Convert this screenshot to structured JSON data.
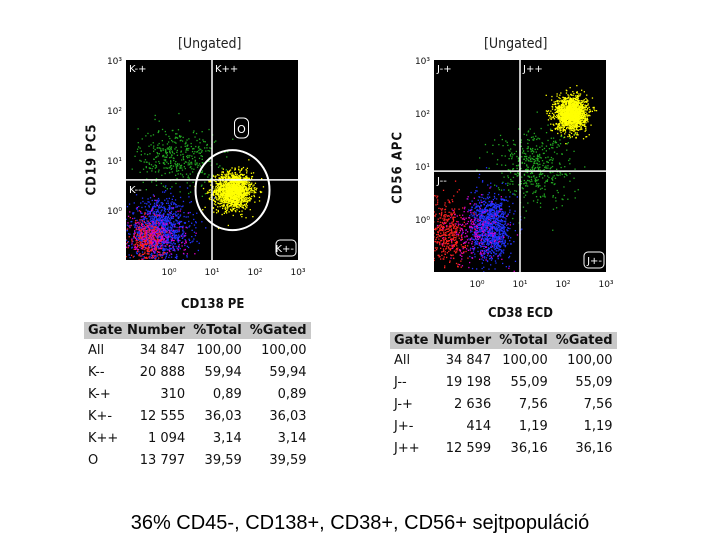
{
  "chart_data": [
    {
      "type": "scatter",
      "title": "[Ungated]",
      "xlabel": "CD138 PE",
      "ylabel": "CD19 PC5",
      "scale": "log",
      "xlim": [
        0.1,
        1000
      ],
      "ylim": [
        0.1,
        1000
      ],
      "x_ticks": [
        "10⁰",
        "10¹",
        "10²",
        "10³"
      ],
      "y_ticks": [
        "10⁰",
        "10¹",
        "10²",
        "10³"
      ],
      "quadrant_cross": {
        "x": 10,
        "y": 4
      },
      "quadrant_labels": [
        "K-+",
        "K++",
        "K--",
        "K+-"
      ],
      "region_label": "O",
      "region": {
        "center_x": 30,
        "center_y": 2.5
      },
      "populations": [
        {
          "name": "plasma cells",
          "color": "#ffff00",
          "center": [
            30,
            2.5
          ],
          "spread_decades": [
            0.22,
            0.18
          ],
          "count": 1600
        },
        {
          "name": "green population",
          "color": "#22aa22",
          "center": [
            1.5,
            12
          ],
          "spread_decades": [
            0.45,
            0.3
          ],
          "count": 380
        },
        {
          "name": "blue population",
          "color": "#2233ff",
          "center": [
            0.6,
            0.4
          ],
          "spread_decades": [
            0.35,
            0.3
          ],
          "count": 1100
        },
        {
          "name": "red population",
          "color": "#ff2222",
          "center": [
            0.3,
            0.25
          ],
          "spread_decades": [
            0.2,
            0.2
          ],
          "count": 350
        },
        {
          "name": "magenta population",
          "color": "#dd00cc",
          "center": [
            0.5,
            0.3
          ],
          "spread_decades": [
            0.35,
            0.3
          ],
          "count": 250
        }
      ]
    },
    {
      "type": "scatter",
      "title": "[Ungated]",
      "xlabel": "CD38 ECD",
      "ylabel": "CD56 APC",
      "scale": "log",
      "xlim": [
        0.1,
        1000
      ],
      "ylim": [
        0.1,
        1000
      ],
      "x_ticks": [
        "10⁰",
        "10¹",
        "10²",
        "10³"
      ],
      "y_ticks": [
        "10⁰",
        "10¹",
        "10²",
        "10³"
      ],
      "quadrant_cross": {
        "x": 10,
        "y": 8
      },
      "quadrant_labels": [
        "J-+",
        "J++",
        "J--",
        "J+-"
      ],
      "populations": [
        {
          "name": "plasma cells",
          "color": "#ffff00",
          "center": [
            150,
            100
          ],
          "spread_decades": [
            0.18,
            0.16
          ],
          "count": 1600
        },
        {
          "name": "green population",
          "color": "#22aa22",
          "center": [
            20,
            10
          ],
          "spread_decades": [
            0.45,
            0.35
          ],
          "count": 450
        },
        {
          "name": "blue population",
          "color": "#2233ff",
          "center": [
            2,
            0.7
          ],
          "spread_decades": [
            0.22,
            0.3
          ],
          "count": 1100
        },
        {
          "name": "red population",
          "color": "#ff2222",
          "center": [
            0.2,
            0.6
          ],
          "spread_decades": [
            0.2,
            0.3
          ],
          "count": 420
        },
        {
          "name": "magenta population",
          "color": "#dd00cc",
          "center": [
            1,
            0.6
          ],
          "spread_decades": [
            0.35,
            0.3
          ],
          "count": 220
        }
      ]
    }
  ],
  "tables": {
    "left": {
      "headers": [
        "Gate Number",
        "%Total",
        "%Gated"
      ],
      "rows": [
        [
          "All",
          "34 847",
          "100,00",
          "100,00"
        ],
        [
          "K--",
          "20 888",
          "59,94",
          "59,94"
        ],
        [
          "K-+",
          "310",
          "0,89",
          "0,89"
        ],
        [
          "K+-",
          "12 555",
          "36,03",
          "36,03"
        ],
        [
          "K++",
          "1 094",
          "3,14",
          "3,14"
        ],
        [
          "O",
          "13 797",
          "39,59",
          "39,59"
        ]
      ]
    },
    "right": {
      "headers": [
        "Gate Number",
        "%Total",
        "%Gated"
      ],
      "rows": [
        [
          "All",
          "34 847",
          "100,00",
          "100,00"
        ],
        [
          "J--",
          "19 198",
          "55,09",
          "55,09"
        ],
        [
          "J-+",
          "2 636",
          "7,56",
          "7,56"
        ],
        [
          "J+-",
          "414",
          "1,19",
          "1,19"
        ],
        [
          "J++",
          "12 599",
          "36,16",
          "36,16"
        ]
      ]
    }
  },
  "caption": "36% CD45-, CD138+, CD38+, CD56+ sejtpopuláció",
  "colors": {
    "plot_background": "#000000",
    "gate_lines": "#ffffff",
    "header_fill": "#c8c8c8"
  }
}
